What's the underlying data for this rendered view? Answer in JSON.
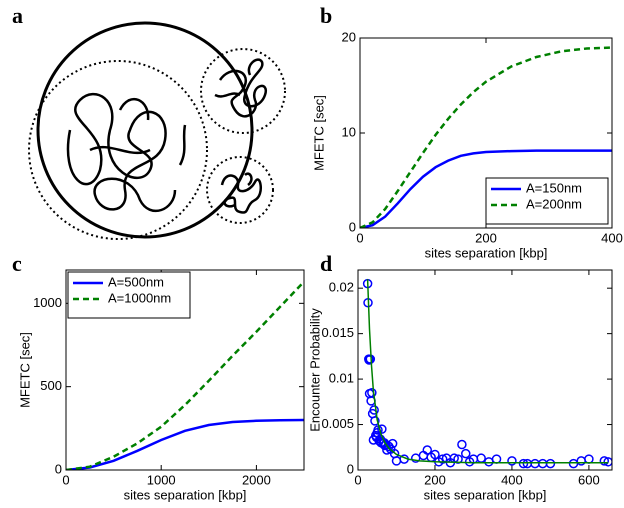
{
  "panels": [
    "a",
    "b",
    "c",
    "d"
  ],
  "chart_data": [
    {
      "type": "line",
      "xlabel": "sites separation   [kbp]",
      "ylabel": "MFETC   [sec]",
      "xlim": [
        0,
        400
      ],
      "ylim": [
        0,
        20
      ],
      "xticks": [
        0,
        200,
        400
      ],
      "yticks": [
        0,
        10,
        20
      ],
      "legend": "lower right",
      "series": [
        {
          "name": "A=150nm",
          "color": "#0000ff",
          "linestyle": "solid",
          "x": [
            0,
            20,
            40,
            60,
            80,
            100,
            120,
            140,
            160,
            180,
            200,
            240,
            280,
            320,
            360,
            400
          ],
          "values": [
            0,
            0.3,
            1.2,
            2.6,
            4.1,
            5.4,
            6.4,
            7.1,
            7.6,
            7.85,
            8.0,
            8.1,
            8.15,
            8.15,
            8.15,
            8.15
          ]
        },
        {
          "name": "A=200nm",
          "color": "#008000",
          "linestyle": "dashed",
          "x": [
            0,
            20,
            40,
            60,
            80,
            100,
            120,
            140,
            160,
            180,
            200,
            240,
            280,
            320,
            360,
            400
          ],
          "values": [
            0,
            0.6,
            2.0,
            3.9,
            5.9,
            7.9,
            9.8,
            11.5,
            13.0,
            14.3,
            15.4,
            17.0,
            18.0,
            18.6,
            18.9,
            19.0
          ]
        }
      ]
    },
    {
      "type": "line",
      "xlabel": "sites separation   [kbp]",
      "ylabel": "MFETC   [sec]",
      "xlim": [
        0,
        2500
      ],
      "ylim": [
        0,
        1200
      ],
      "xticks": [
        0,
        1000,
        2000
      ],
      "yticks": [
        0,
        500,
        1000
      ],
      "legend": "upper left",
      "series": [
        {
          "name": "A=500nm",
          "color": "#0000ff",
          "linestyle": "solid",
          "x": [
            0,
            250,
            500,
            750,
            1000,
            1250,
            1500,
            1750,
            2000,
            2250,
            2500
          ],
          "values": [
            0,
            15,
            55,
            115,
            180,
            235,
            270,
            288,
            295,
            298,
            300
          ]
        },
        {
          "name": "A=1000nm",
          "color": "#008000",
          "linestyle": "dashed",
          "x": [
            0,
            250,
            500,
            750,
            1000,
            1250,
            1500,
            1750,
            2000,
            2250,
            2500
          ],
          "values": [
            0,
            20,
            80,
            160,
            260,
            390,
            535,
            685,
            830,
            980,
            1130
          ]
        }
      ]
    },
    {
      "type": "scatter",
      "xlabel": "sites separation   [kbp]",
      "ylabel": "Encounter Probability",
      "xlim": [
        0,
        660
      ],
      "ylim": [
        0,
        0.022
      ],
      "xticks": [
        0,
        200,
        400,
        600
      ],
      "yticks": [
        0,
        0.005,
        0.01,
        0.015,
        0.02
      ],
      "series": [
        {
          "color": "#0000ff",
          "marker": "o",
          "x": [
            25,
            26,
            28,
            29,
            30,
            32,
            34,
            36,
            38,
            40,
            42,
            44,
            46,
            48,
            50,
            52,
            55,
            58,
            60,
            62,
            65,
            68,
            70,
            72,
            75,
            80,
            85,
            90,
            95,
            100,
            120,
            150,
            170,
            180,
            190,
            200,
            210,
            220,
            230,
            240,
            250,
            260,
            270,
            280,
            290,
            300,
            320,
            340,
            360,
            400,
            430,
            440,
            460,
            480,
            500,
            560,
            580,
            600,
            640,
            650
          ],
          "values": [
            0.0205,
            0.0184,
            0.0122,
            0.0121,
            0.0084,
            0.0122,
            0.0076,
            0.0085,
            0.0062,
            0.0033,
            0.0066,
            0.0054,
            0.0038,
            0.0036,
            0.0041,
            0.0044,
            0.0032,
            0.0034,
            0.003,
            0.0045,
            0.0029,
            0.003,
            0.0027,
            0.0028,
            0.0022,
            0.0026,
            0.0023,
            0.0029,
            0.0018,
            0.001,
            0.0012,
            0.0013,
            0.0016,
            0.0022,
            0.0014,
            0.0017,
            0.0009,
            0.0012,
            0.0013,
            0.0008,
            0.0013,
            0.0012,
            0.0028,
            0.0018,
            0.0009,
            0.0012,
            0.0013,
            0.0009,
            0.0012,
            0.001,
            0.0007,
            0.0007,
            0.0007,
            0.0007,
            0.0007,
            0.0007,
            0.001,
            0.0012,
            0.001,
            0.0009
          ]
        },
        {
          "color": "#008000",
          "linestyle": "solid",
          "x": [
            25,
            30,
            35,
            40,
            50,
            60,
            70,
            80,
            100,
            130,
            160,
            200,
            300,
            400,
            500,
            650
          ],
          "values": [
            0.021,
            0.0155,
            0.0115,
            0.0087,
            0.0055,
            0.0039,
            0.003,
            0.0024,
            0.0017,
            0.0012,
            0.001,
            0.0009,
            0.0008,
            0.0008,
            0.0008,
            0.0008
          ]
        }
      ]
    }
  ]
}
